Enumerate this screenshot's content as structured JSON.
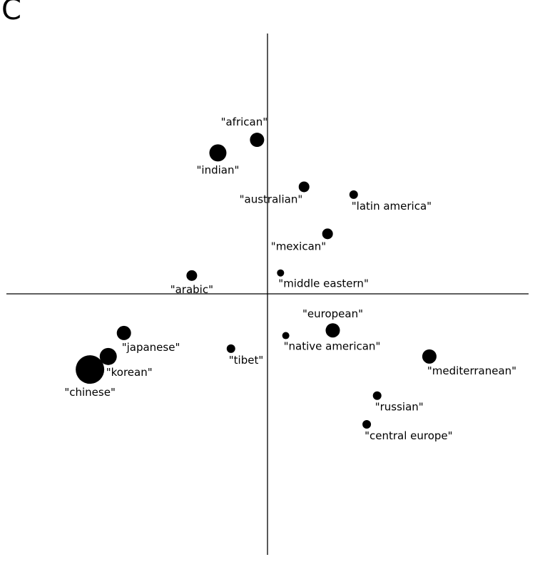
{
  "panel_label": "C",
  "chart_data": {
    "type": "scatter",
    "title": "",
    "xlabel": "",
    "ylabel": "",
    "xlim": [
      -1.0,
      1.0
    ],
    "ylim": [
      -1.0,
      1.0
    ],
    "grid": false,
    "axes": "crosshair-through-origin",
    "points": [
      {
        "label": "\"african\"",
        "x": -0.04,
        "y": 0.59,
        "size": 3,
        "label_pos": "above-left"
      },
      {
        "label": "\"indian\"",
        "x": -0.19,
        "y": 0.54,
        "size": 4,
        "label_pos": "below"
      },
      {
        "label": "\"australian\"",
        "x": 0.14,
        "y": 0.41,
        "size": 2,
        "label_pos": "below-left"
      },
      {
        "label": "\"latin america\"",
        "x": 0.33,
        "y": 0.38,
        "size": 1,
        "label_pos": "below-right"
      },
      {
        "label": "\"mexican\"",
        "x": 0.23,
        "y": 0.23,
        "size": 2,
        "label_pos": "below-left"
      },
      {
        "label": "\"arabic\"",
        "x": -0.29,
        "y": 0.07,
        "size": 2,
        "label_pos": "below"
      },
      {
        "label": "\"middle eastern\"",
        "x": 0.05,
        "y": 0.08,
        "size": 0,
        "label_pos": "below-right"
      },
      {
        "label": "\"european\"",
        "x": 0.25,
        "y": -0.14,
        "size": 3,
        "label_pos": "above"
      },
      {
        "label": "\"native american\"",
        "x": 0.07,
        "y": -0.16,
        "size": 0,
        "label_pos": "below-right"
      },
      {
        "label": "\"mediterranean\"",
        "x": 0.62,
        "y": -0.24,
        "size": 3,
        "label_pos": "below-right"
      },
      {
        "label": "\"japanese\"",
        "x": -0.55,
        "y": -0.15,
        "size": 3,
        "label_pos": "below-right"
      },
      {
        "label": "\"korean\"",
        "x": -0.61,
        "y": -0.24,
        "size": 4,
        "label_pos": "below-right"
      },
      {
        "label": "\"chinese\"",
        "x": -0.68,
        "y": -0.29,
        "size": 6,
        "label_pos": "below"
      },
      {
        "label": "\"tibet\"",
        "x": -0.14,
        "y": -0.21,
        "size": 1,
        "label_pos": "below-right"
      },
      {
        "label": "\"russian\"",
        "x": 0.42,
        "y": -0.39,
        "size": 1,
        "label_pos": "below-right"
      },
      {
        "label": "\"central europe\"",
        "x": 0.38,
        "y": -0.5,
        "size": 1,
        "label_pos": "below-right"
      }
    ]
  }
}
